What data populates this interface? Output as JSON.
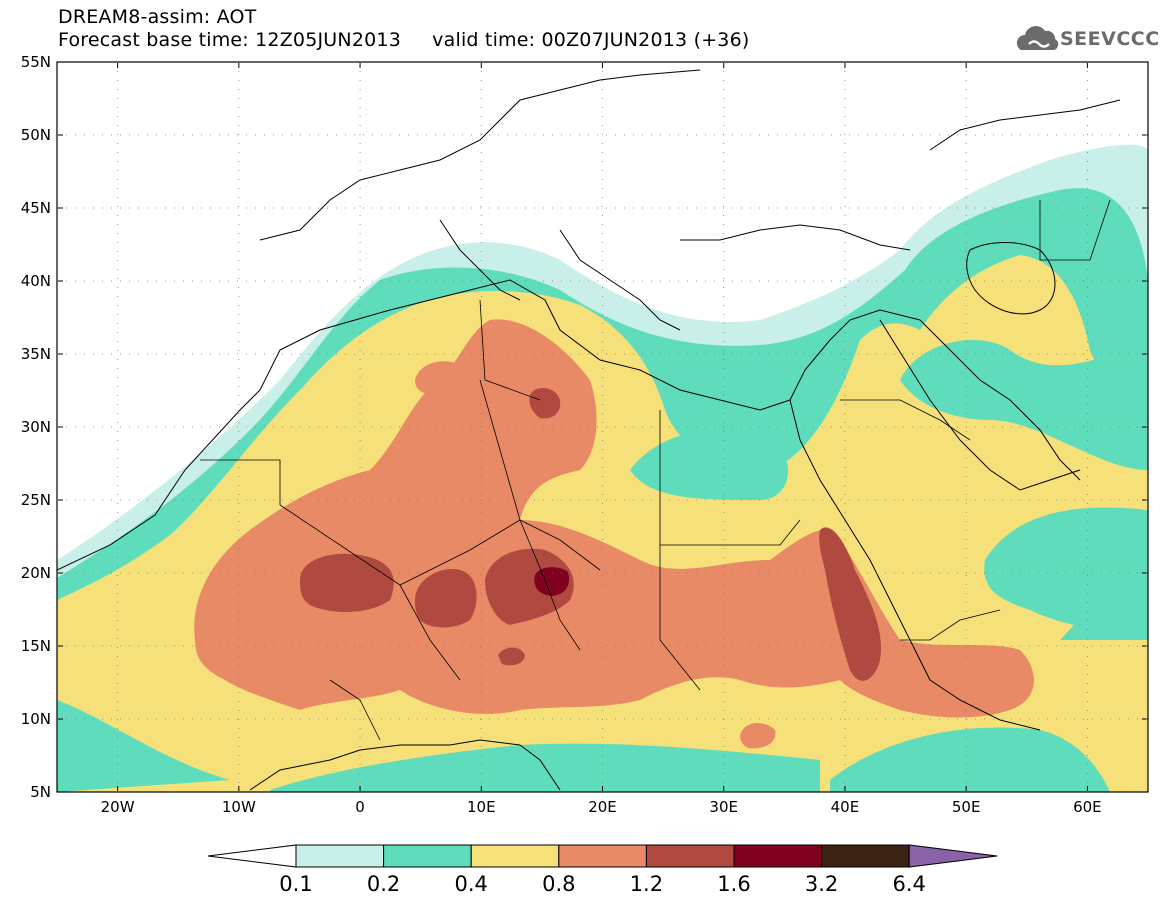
{
  "header": {
    "line1": "DREAM8-assim: AOT",
    "line2": "Forecast base time: 12Z05JUN2013     valid time: 00Z07JUN2013 (+36)"
  },
  "logo": {
    "text": "SEEVCCC",
    "color": "#6b6b6b"
  },
  "map": {
    "lon_range": [
      -25,
      65
    ],
    "lat_range": [
      5,
      55
    ],
    "lat_ticks": [
      "55N",
      "50N",
      "45N",
      "40N",
      "35N",
      "30N",
      "25N",
      "20N",
      "15N",
      "10N",
      "5N"
    ],
    "lon_ticks": [
      "20W",
      "10W",
      "0",
      "10E",
      "20E",
      "30E",
      "40E",
      "50E",
      "60E"
    ]
  },
  "colorbar": {
    "labels": [
      "0.1",
      "0.2",
      "0.4",
      "0.8",
      "1.2",
      "1.6",
      "3.2",
      "6.4"
    ],
    "colors": {
      "below": "#ffffff",
      "b1": "#c8f0e8",
      "b2": "#5fdcbc",
      "b3": "#f5e07a",
      "b4": "#e88a66",
      "b5": "#b04a40",
      "b6": "#800020",
      "b7": "#3a2214",
      "above": "#8a62a8"
    }
  }
}
